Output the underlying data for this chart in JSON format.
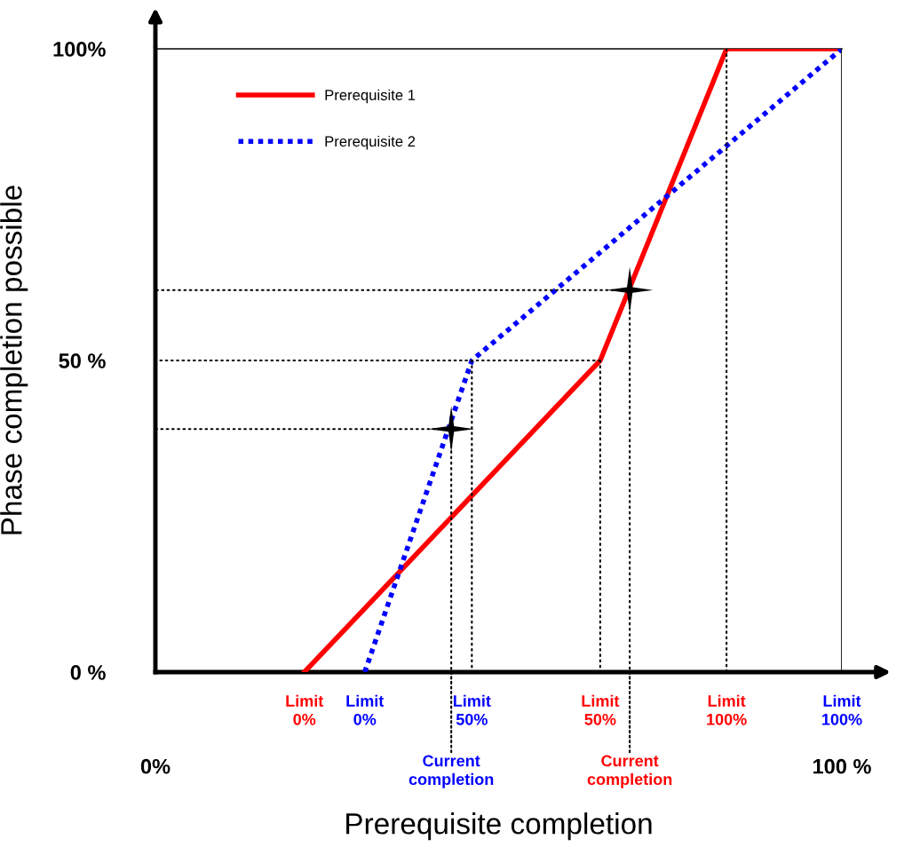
{
  "chart_data": {
    "type": "line",
    "xlabel": "Prerequisite completion",
    "ylabel": "Phase completion possible",
    "xlim": [
      0,
      100
    ],
    "ylim": [
      0,
      100
    ],
    "xticks": [
      {
        "value": 0,
        "label": "0%"
      },
      {
        "value": 100,
        "label": "100 %"
      }
    ],
    "yticks": [
      {
        "value": 0,
        "label": "0 %"
      },
      {
        "value": 50,
        "label": "50 %"
      },
      {
        "value": 100,
        "label": "100%"
      }
    ],
    "grid": false,
    "legend": "top left",
    "series": [
      {
        "name": "Prerequisite 1",
        "color": "#ff0000",
        "line_style": "solid",
        "x": [
          21.7,
          64.8,
          83.2,
          100
        ],
        "values": [
          0,
          50,
          100,
          100
        ]
      },
      {
        "name": "Prerequisite 2",
        "color": "#0000ff",
        "line_style": "dotted",
        "x": [
          30.5,
          46.1,
          100
        ],
        "values": [
          0,
          50,
          100
        ]
      },
      {
        "type": "line",
        "color": "#000000",
        "line_style": "dotted",
        "x": [
          69.1,
          0
        ],
        "values": [
          61.3,
          61.3
        ]
      },
      {
        "type": "line",
        "color": "#000000",
        "line_style": "dotted",
        "x": [
          64.8,
          0
        ],
        "values": [
          50,
          50
        ]
      },
      {
        "type": "line",
        "color": "#000000",
        "line_style": "dotted",
        "x": [
          43.1,
          0
        ],
        "values": [
          39.0,
          39.0
        ]
      },
      {
        "type": "line",
        "color": "#000000",
        "line_style": "dotted",
        "x": [
          43.1,
          43.1
        ],
        "values": [
          39.0,
          0
        ]
      },
      {
        "type": "line",
        "color": "#000000",
        "line_style": "dotted",
        "x": [
          46.1,
          46.1
        ],
        "values": [
          50,
          0
        ]
      },
      {
        "type": "line",
        "color": "#000000",
        "line_style": "dotted",
        "x": [
          64.8,
          64.8
        ],
        "values": [
          50,
          0
        ]
      },
      {
        "type": "line",
        "color": "#000000",
        "line_style": "dotted",
        "x": [
          69.1,
          69.1
        ],
        "values": [
          61.3,
          0
        ]
      },
      {
        "type": "line",
        "color": "#000000",
        "line_style": "dotted",
        "x": [
          83.2,
          83.2
        ],
        "values": [
          100,
          0
        ]
      },
      {
        "type": "line",
        "color": "#000000",
        "line_style": "solid",
        "x": [
          100,
          100
        ],
        "values": [
          100,
          0
        ]
      },
      {
        "type": "scatter",
        "color": "#000000",
        "marker": "star",
        "x": [
          43.1,
          69.1
        ],
        "values": [
          39.0,
          61.3
        ]
      }
    ],
    "annotations": [
      {
        "text": "Limit\n0%",
        "x": 21.7,
        "y": 0
      },
      {
        "text": "Limit\n0%",
        "x": 30.5,
        "y": 0
      },
      {
        "text": "Limit\n50%",
        "x": 46.1,
        "y": 0
      },
      {
        "text": "Limit\n50%",
        "x": 64.8,
        "y": 0
      },
      {
        "text": "Limit\n100%",
        "x": 83.2,
        "y": 0
      },
      {
        "text": "Limit\n100%",
        "x": 100,
        "y": 0
      },
      {
        "text": "Current\ncompletion",
        "x": 43.1,
        "y": 0
      },
      {
        "text": "Current\ncompletion",
        "x": 69.1,
        "y": 0
      }
    ]
  }
}
